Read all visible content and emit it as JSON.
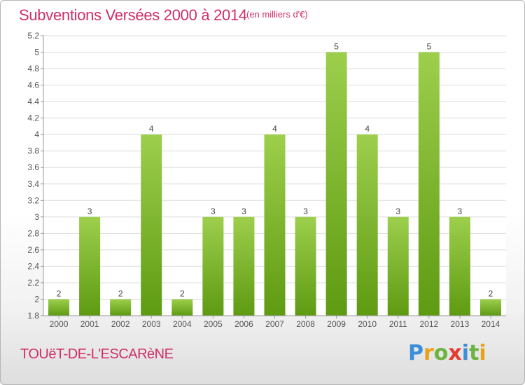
{
  "header": {
    "title": "Subventions Versées 2000 à 2014",
    "unit": "(en milliers d'€)"
  },
  "footer": {
    "commune": "TOUëT-DE-L'ESCARèNE",
    "logo_letters": [
      {
        "ch": "P",
        "color": "#3a8fd8"
      },
      {
        "ch": "r",
        "color": "#e9a21a"
      },
      {
        "ch": "o",
        "color": "#6db33f"
      },
      {
        "ch": "x",
        "color": "#e53a2f"
      },
      {
        "ch": "i",
        "color": "#3a8fd8"
      },
      {
        "ch": "t",
        "color": "#6db33f"
      },
      {
        "ch": "i",
        "color": "#e9a21a"
      }
    ]
  },
  "chart_data": {
    "type": "bar",
    "categories": [
      "2000",
      "2001",
      "2002",
      "2003",
      "2004",
      "2005",
      "2006",
      "2007",
      "2008",
      "2009",
      "2010",
      "2011",
      "2012",
      "2013",
      "2014"
    ],
    "values": [
      2,
      3,
      2,
      4,
      2,
      3,
      3,
      4,
      3,
      5,
      4,
      3,
      5,
      3,
      2
    ],
    "data_labels": [
      "2",
      "3",
      "2",
      "4",
      "2",
      "3",
      "3",
      "4",
      "3",
      "5",
      "4",
      "3",
      "5",
      "3",
      "2"
    ],
    "ylim": [
      1.8,
      5.2
    ],
    "yticks": [
      1.8,
      2,
      2.2,
      2.4,
      2.6,
      2.8,
      3,
      3.2,
      3.4,
      3.6,
      3.8,
      4,
      4.2,
      4.4,
      4.6,
      4.8,
      5,
      5.2
    ],
    "ytick_labels": [
      "1.8",
      "2",
      "2.2",
      "2.4",
      "2.6",
      "2.8",
      "3",
      "3.2",
      "3.4",
      "3.6",
      "3.8",
      "4",
      "4.2",
      "4.4",
      "4.6",
      "4.8",
      "5",
      "5.2"
    ],
    "grid": true,
    "bar_color_top": "#9dcf4c",
    "bar_color_bottom": "#5e9a12",
    "grid_color": "#dddddd",
    "axis_color": "#999999"
  }
}
